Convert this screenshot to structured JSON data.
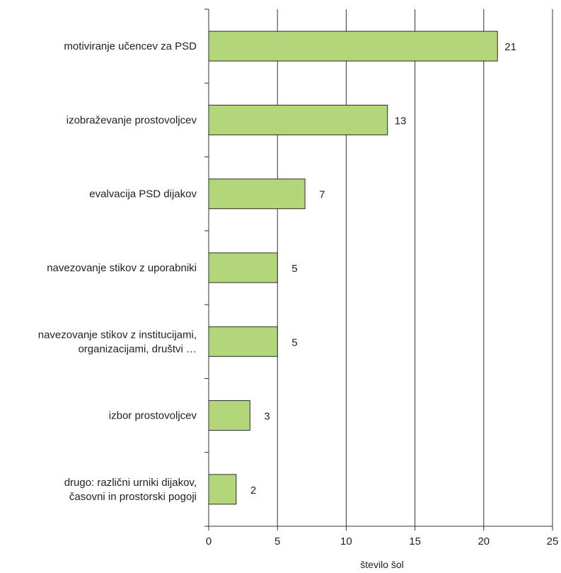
{
  "chart_data": {
    "type": "bar",
    "orientation": "horizontal",
    "categories": [
      [
        "motiviranje učencev za PSD"
      ],
      [
        "izobraževanje prostovoljcev"
      ],
      [
        "evalvacija PSD dijakov"
      ],
      [
        "navezovanje stikov z uporabniki"
      ],
      [
        "navezovanje stikov z institucijami,",
        "organizacijami, društvi …"
      ],
      [
        "izbor prostovoljcev"
      ],
      [
        "drugo: različni urniki dijakov,",
        "časovni in prostorski pogoji"
      ]
    ],
    "values": [
      21,
      13,
      7,
      5,
      5,
      3,
      2
    ],
    "data_labels": [
      "21",
      "13",
      "7",
      "5",
      "5",
      "3",
      "2"
    ],
    "xlabel": "število šol",
    "ylabel": "",
    "title": "",
    "xlim": [
      0,
      25
    ],
    "xticks": [
      0,
      5,
      10,
      15,
      20,
      25
    ],
    "grid": "vertical",
    "legend": "none",
    "colors": {
      "bar_fill": "#b3d67a",
      "bar_stroke": "#2b2b2b",
      "axis": "#333333",
      "grid": "#333333"
    }
  }
}
